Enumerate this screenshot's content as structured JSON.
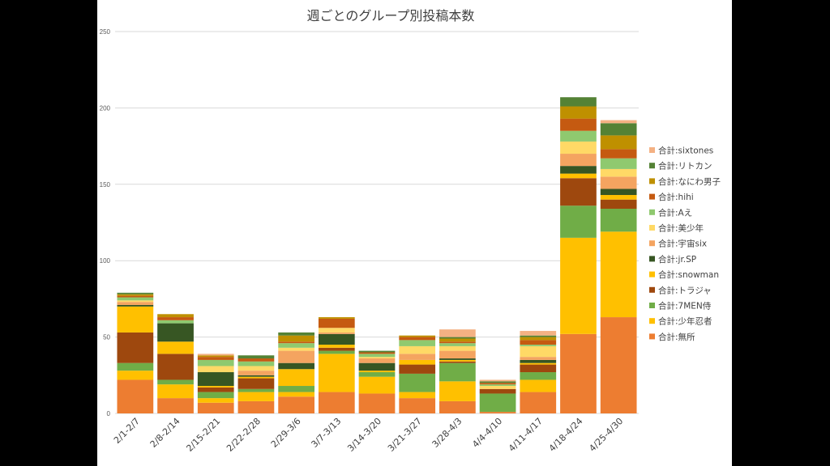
{
  "chart_data": {
    "type": "bar",
    "stacked": true,
    "title": "週ごとのグループ別投稿本数",
    "xlabel": "",
    "ylabel": "",
    "ylim": [
      0,
      250
    ],
    "yticks": [
      0,
      50,
      100,
      150,
      200,
      250
    ],
    "grid": true,
    "legend_position": "right",
    "categories": [
      "2/1-2/7",
      "2/8-2/14",
      "2/15-2/21",
      "2/22-2/28",
      "2/29-3/6",
      "3/7-3/13",
      "3/14-3/20",
      "3/21-3/27",
      "3/28-4/3",
      "4/4-4/10",
      "4/11-4/17",
      "4/18-4/24",
      "4/25-4/30"
    ],
    "series": [
      {
        "name": "合計:無所",
        "color": "#ED7D31",
        "values": [
          22,
          10,
          7,
          8,
          11,
          14,
          13,
          10,
          8,
          1,
          14,
          52,
          63
        ]
      },
      {
        "name": "合計:少年忍者",
        "color": "#FFC000",
        "values": [
          6,
          9,
          3,
          6,
          3,
          25,
          11,
          4,
          13,
          0,
          8,
          63,
          56
        ]
      },
      {
        "name": "合計:7MEN侍",
        "color": "#70AD47",
        "values": [
          5,
          3,
          4,
          2,
          4,
          2,
          3,
          12,
          12,
          12,
          5,
          21,
          15
        ]
      },
      {
        "name": "合計:トラジャ",
        "color": "#9E480E",
        "values": [
          20,
          17,
          3,
          7,
          0,
          2,
          0,
          6,
          1,
          3,
          5,
          18,
          6
        ]
      },
      {
        "name": "合計:snowman",
        "color": "#FFC000",
        "values": [
          17,
          8,
          1,
          1,
          11,
          2,
          1,
          3,
          1,
          0,
          1,
          3,
          3
        ]
      },
      {
        "name": "合計:jr.SP",
        "color": "#375623",
        "values": [
          1,
          12,
          9,
          1,
          4,
          7,
          5,
          0,
          1,
          0,
          2,
          5,
          4
        ]
      },
      {
        "name": "合計:宇宙six",
        "color": "#F4A460",
        "values": [
          2,
          0,
          0,
          3,
          8,
          1,
          3,
          4,
          5,
          0,
          2,
          8,
          8
        ]
      },
      {
        "name": "合計:美少年",
        "color": "#FFD966",
        "values": [
          1,
          0,
          4,
          3,
          2,
          3,
          1,
          5,
          3,
          2,
          7,
          8,
          5
        ]
      },
      {
        "name": "合計:Aえ",
        "color": "#8FC96F",
        "values": [
          2,
          2,
          4,
          3,
          3,
          0,
          2,
          4,
          2,
          1,
          1,
          7,
          7
        ]
      },
      {
        "name": "合計:hihi",
        "color": "#C55A11",
        "values": [
          1,
          2,
          2,
          2,
          1,
          6,
          1,
          2,
          1,
          1,
          3,
          8,
          6
        ]
      },
      {
        "name": "合計:なにわ男子",
        "color": "#BF9000",
        "values": [
          1,
          2,
          1,
          0,
          4,
          1,
          0,
          1,
          2,
          0,
          2,
          8,
          9
        ]
      },
      {
        "name": "合計:リトカン",
        "color": "#548235",
        "values": [
          1,
          0,
          0,
          2,
          2,
          0,
          1,
          0,
          1,
          1,
          1,
          6,
          8
        ]
      },
      {
        "name": "合計:sixtones",
        "color": "#F4B183",
        "values": [
          0,
          0,
          1,
          0,
          0,
          0,
          0,
          0,
          5,
          1,
          3,
          0,
          2
        ]
      }
    ]
  }
}
